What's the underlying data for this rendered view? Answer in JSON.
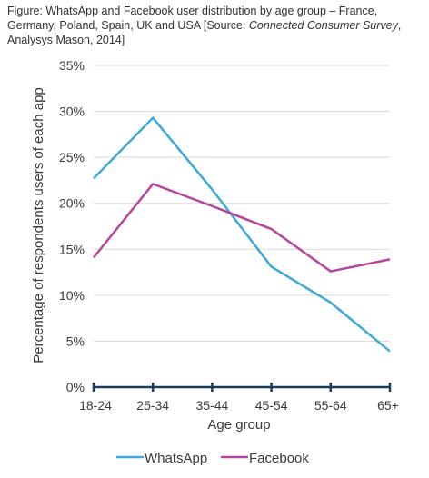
{
  "caption": {
    "prefix": "Figure: WhatsApp and Facebook user distribution by age group – France, Germany, Poland, Spain, UK and USA [Source: ",
    "source_italic": "Connected Consumer Survey",
    "suffix": ", Analysys Mason, 2014]"
  },
  "colors": {
    "whatsapp": "#3fa9dc",
    "facebook": "#b7449d",
    "grid": "#d9d9d9",
    "axis": "#1f3a5a"
  },
  "chart_data": {
    "type": "line",
    "categories": [
      "18-24",
      "25-34",
      "35-44",
      "45-54",
      "55-64",
      "65+"
    ],
    "xlabel": "Age group",
    "ylabel": "Percentage of respondents users of each app",
    "ylim": [
      0,
      35
    ],
    "yticks": [
      "0%",
      "5%",
      "10%",
      "15%",
      "20%",
      "25%",
      "30%",
      "35%"
    ],
    "grid": true,
    "legend": "bottom",
    "series": [
      {
        "name": "WhatsApp",
        "color": "#3fa9dc",
        "values": [
          22.7,
          29.3,
          21.5,
          13.1,
          9.2,
          3.9
        ]
      },
      {
        "name": "Facebook",
        "color": "#b7449d",
        "values": [
          14.1,
          22.1,
          19.7,
          17.2,
          12.6,
          13.9
        ]
      }
    ]
  }
}
